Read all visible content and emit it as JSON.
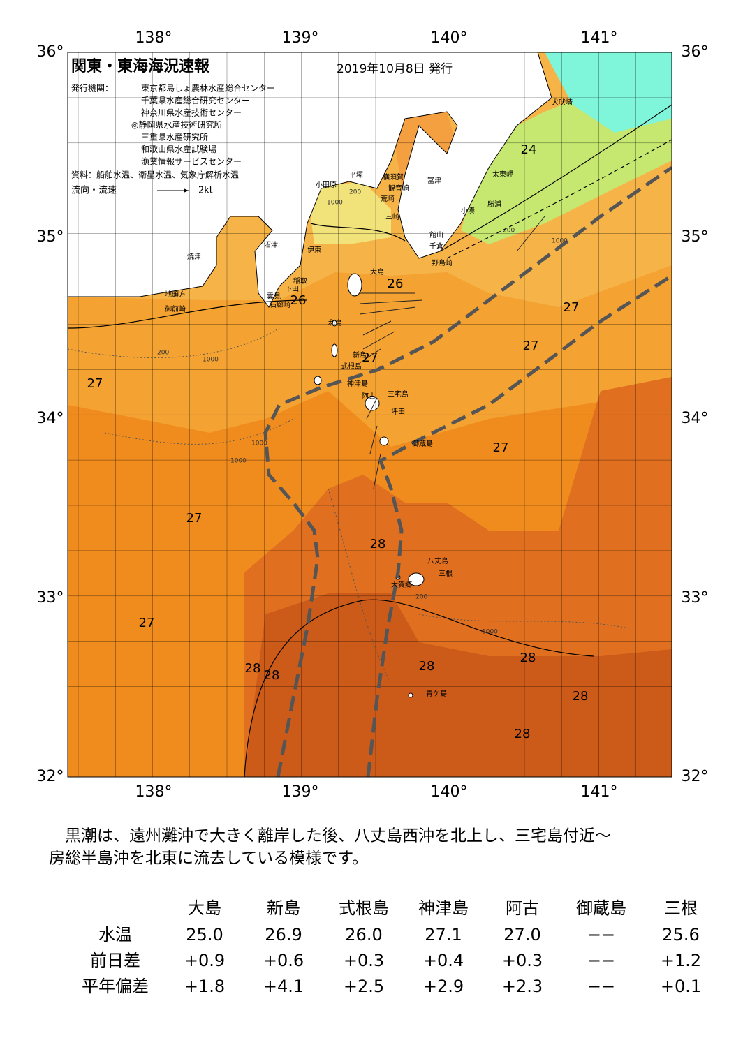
{
  "header": {
    "title": "関東・東海海況速報",
    "date": "2019年10月8日 発行",
    "issuer_label": "発行機関：",
    "issuers": [
      "東京都島しょ農林水産総合センター",
      "千葉県水産総合研究センター",
      "神奈川県水産技術センター",
      "◎静岡県水産技術研究所",
      "三重県水産研究所",
      "和歌山県水産試験場",
      "漁業情報サービスセンター"
    ],
    "sources": "資料：船舶水温、衛星水温、気象庁解析水温",
    "current_label": "流向・流速",
    "current_scale": "2kt"
  },
  "map": {
    "lon_labels": [
      "138°",
      "139°",
      "140°",
      "141°"
    ],
    "lat_labels": [
      "36°",
      "35°",
      "34°",
      "33°",
      "32°"
    ],
    "places": [
      "犬吠埼",
      "太東岬",
      "勝浦",
      "小湊",
      "富津",
      "横須賀",
      "観音崎",
      "平塚",
      "小田原",
      "荒崎",
      "三崎",
      "館山",
      "千倉",
      "野島崎",
      "沼津",
      "伊東",
      "焼津",
      "稲取",
      "下田",
      "雲見",
      "石廊崎",
      "地頭方",
      "御前崎",
      "大島",
      "利島",
      "新島",
      "式根島",
      "神津島",
      "三宅島",
      "阿古",
      "坪田",
      "御蔵島",
      "八丈島",
      "三根",
      "大賀郷",
      "青ケ島"
    ],
    "isotherm_labels": [
      24,
      26,
      26,
      27,
      27,
      27,
      27,
      27,
      27,
      28,
      27,
      28,
      28,
      28,
      28,
      28,
      28
    ],
    "depth_labels": [
      "200",
      "1000",
      "200",
      "1000",
      "200",
      "1000",
      "1000",
      "1000",
      "200",
      "1000"
    ]
  },
  "commentary": [
    "黒潮は、遠州灘沖で大きく離岸した後、八丈島西沖を北上し、三宅島付近～",
    "房総半島沖を北東に流去している模様です。"
  ],
  "table": {
    "columns": [
      "大島",
      "新島",
      "式根島",
      "神津島",
      "阿古",
      "御蔵島",
      "三根"
    ],
    "rows": [
      {
        "label": "水温",
        "values": [
          "25.0",
          "26.9",
          "26.0",
          "27.1",
          "27.0",
          "−−",
          "25.6"
        ]
      },
      {
        "label": "前日差",
        "values": [
          "+0.9",
          "+0.6",
          "+0.3",
          "+0.4",
          "+0.3",
          "−−",
          "+1.2"
        ]
      },
      {
        "label": "平年偏差",
        "values": [
          "+1.8",
          "+4.1",
          "+2.5",
          "+2.9",
          "+2.3",
          "−−",
          "+0.1"
        ]
      }
    ]
  }
}
